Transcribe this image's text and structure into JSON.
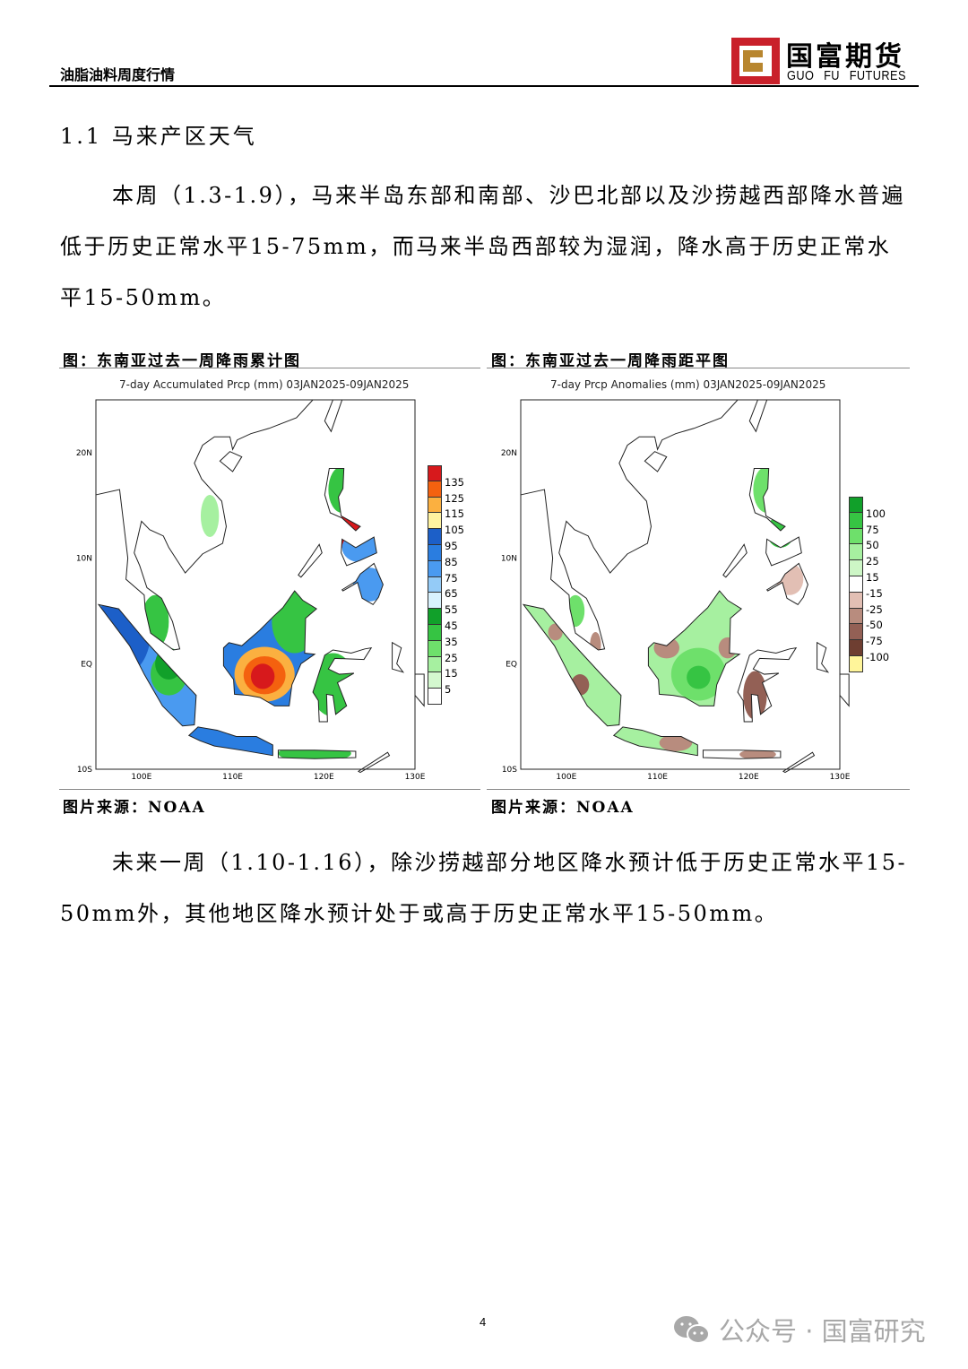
{
  "header": {
    "report_title": "油脂油料周度行情",
    "logo_cn": "国富期货",
    "logo_en": "GUO FU FUTURES"
  },
  "section_title": "1.1 马来产区天气",
  "paragraph1": "本周（1.3-1.9），马来半岛东部和南部、沙巴北部以及沙捞越西部降水普遍低于历史正常水平15-75mm，而马来半岛西部较为湿润，降水高于历史正常水平15-50mm。",
  "figures": [
    {
      "caption": "图：东南亚过去一周降雨累计图",
      "map_title": "7-day Accumulated Prcp (mm) 03JAN2025-09JAN2025",
      "source": "图片来源：NOAA",
      "legend": [
        {
          "label": "135",
          "color": "#d7191c"
        },
        {
          "label": "125",
          "color": "#f4610f"
        },
        {
          "label": "115",
          "color": "#fbb040"
        },
        {
          "label": "105",
          "color": "#fff3a0"
        },
        {
          "label": "95",
          "color": "#1c5fc8"
        },
        {
          "label": "85",
          "color": "#2a7de0"
        },
        {
          "label": "75",
          "color": "#4a9af0"
        },
        {
          "label": "65",
          "color": "#94cbf7"
        },
        {
          "label": "55",
          "color": "#d9f2fe"
        },
        {
          "label": "45",
          "color": "#11a02a"
        },
        {
          "label": "35",
          "color": "#36c443"
        },
        {
          "label": "25",
          "color": "#6ee06b"
        },
        {
          "label": "15",
          "color": "#a6f0a0"
        },
        {
          "label": "5",
          "color": "#d4f8cf"
        },
        {
          "label": "",
          "color": "#ffffff"
        }
      ]
    },
    {
      "caption": "图：东南亚过去一周降雨距平图",
      "map_title": "7-day Prcp Anomalies (mm) 03JAN2025-09JAN2025",
      "source": "图片来源：NOAA",
      "legend": [
        {
          "label": "100",
          "color": "#11a02a"
        },
        {
          "label": "75",
          "color": "#36c443"
        },
        {
          "label": "50",
          "color": "#6ee06b"
        },
        {
          "label": "25",
          "color": "#a6f0a0"
        },
        {
          "label": "15",
          "color": "#cdf6c6"
        },
        {
          "label": "-15",
          "color": "#ffffff"
        },
        {
          "label": "-25",
          "color": "#e2bfb4"
        },
        {
          "label": "-50",
          "color": "#b88c7e"
        },
        {
          "label": "-75",
          "color": "#936055"
        },
        {
          "label": "-100",
          "color": "#6e3e31"
        },
        {
          "label": "",
          "color": "#fff59a"
        }
      ]
    }
  ],
  "map_axes": {
    "lat_labels": [
      "20N",
      "10N",
      "EQ",
      "10S"
    ],
    "lon_labels": [
      "100E",
      "110E",
      "120E",
      "130E"
    ]
  },
  "paragraph2": "未来一周（1.10-1.16），除沙捞越部分地区降水预计低于历史正常水平15-50mm外，其他地区降水预计处于或高于历史正常水平15-50mm。",
  "footer": {
    "page_number": "4",
    "watermark": "公众号 · 国富研究"
  }
}
